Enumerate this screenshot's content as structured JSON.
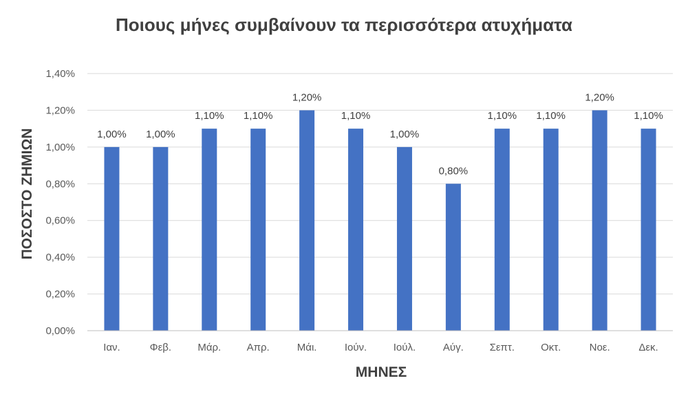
{
  "chart_data": {
    "type": "bar",
    "title": "Ποιους μήνες συμβαίνουν τα περισσότερα ατυχήματα",
    "xlabel": "ΜΗΝΕΣ",
    "ylabel": "ΠΟΣΟΣΤΟ ΖΗΜΙΩΝ",
    "categories": [
      "Ιαν.",
      "Φεβ.",
      "Μάρ.",
      "Απρ.",
      "Μάι.",
      "Ιούν.",
      "Ιούλ.",
      "Αύγ.",
      "Σεπτ.",
      "Οκτ.",
      "Νοε.",
      "Δεκ."
    ],
    "values": [
      1.0,
      1.0,
      1.1,
      1.1,
      1.2,
      1.1,
      1.0,
      0.8,
      1.1,
      1.1,
      1.2,
      1.1
    ],
    "value_labels": [
      "1,00%",
      "1,00%",
      "1,10%",
      "1,10%",
      "1,20%",
      "1,10%",
      "1,00%",
      "0,80%",
      "1,10%",
      "1,10%",
      "1,20%",
      "1,10%"
    ],
    "ylim": [
      0,
      1.4
    ],
    "yticks": [
      0,
      0.2,
      0.4,
      0.6,
      0.8,
      1.0,
      1.2,
      1.4
    ],
    "ytick_labels": [
      "0,00%",
      "0,20%",
      "0,40%",
      "0,60%",
      "0,80%",
      "1,00%",
      "1,20%",
      "1,40%"
    ],
    "grid": true,
    "bar_color": "#4472c4"
  }
}
